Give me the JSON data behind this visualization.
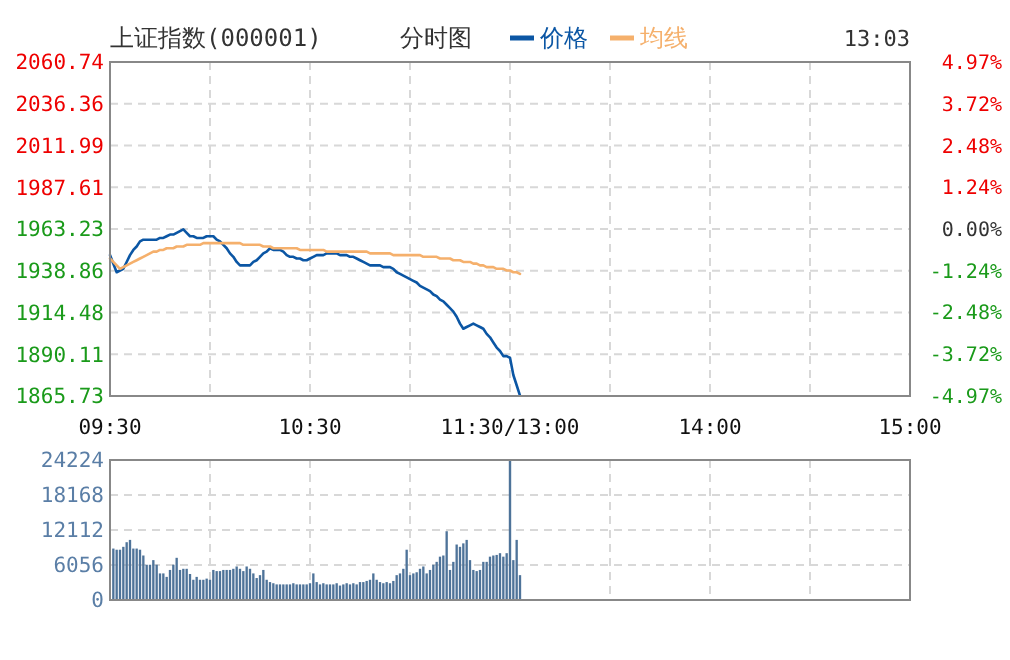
{
  "chart_data": [
    {
      "type": "line",
      "title": "上证指数(000001)",
      "subtitle": "分时图",
      "annotations": [
        "13:03"
      ],
      "legend": "top",
      "grid": true,
      "categories": [
        "09:30",
        null,
        null,
        null,
        null,
        null,
        null,
        null,
        null,
        null,
        null,
        null,
        null,
        null,
        null,
        null,
        null,
        null,
        null,
        null,
        null,
        null,
        null,
        null,
        null,
        null,
        null,
        null,
        null,
        null,
        null,
        null,
        null,
        null,
        null,
        null,
        null,
        null,
        null,
        null,
        null,
        null,
        null,
        null,
        null,
        null,
        null,
        null,
        null,
        null,
        null,
        null,
        null,
        null,
        null,
        null,
        null,
        null,
        null,
        null,
        "10:30",
        null,
        null,
        null,
        null,
        null,
        null,
        null,
        null,
        null,
        null,
        null,
        null,
        null,
        null,
        null,
        null,
        null,
        null,
        null,
        null,
        null,
        null,
        null,
        null,
        null,
        null,
        null,
        null,
        null,
        null,
        null,
        null,
        null,
        null,
        null,
        null,
        null,
        null,
        null,
        null,
        null,
        null,
        null,
        null,
        null,
        null,
        null,
        null,
        null,
        null,
        null,
        null,
        null,
        null,
        null,
        null,
        null,
        null,
        null,
        "11:30/13:00",
        null,
        null,
        null,
        null,
        null,
        null,
        null,
        null,
        null,
        null,
        null,
        null,
        null,
        null,
        null,
        null,
        null,
        null,
        null,
        null,
        null,
        null,
        null,
        null,
        null,
        null,
        null,
        null,
        null,
        null,
        null,
        null,
        null,
        null,
        null,
        null,
        null,
        null,
        null,
        null,
        null,
        null,
        null,
        null,
        null,
        null,
        null,
        null,
        null,
        null,
        null,
        null,
        null,
        null,
        null,
        null,
        null,
        null,
        null,
        "14:00",
        null,
        null,
        null,
        null,
        null,
        null,
        null,
        null,
        null,
        null,
        null,
        null,
        null,
        null,
        null,
        null,
        null,
        null,
        null,
        null,
        null,
        null,
        null,
        null,
        null,
        null,
        null,
        null,
        null,
        null,
        null,
        null,
        null,
        null,
        null,
        null,
        null,
        null,
        null,
        null,
        null,
        null,
        null,
        null,
        null,
        null,
        null,
        null,
        null,
        null,
        null,
        null,
        null,
        null,
        null,
        null,
        null,
        null,
        null,
        "15:00"
      ],
      "series": [
        {
          "name": "价格",
          "color": "#0b56a4",
          "values": [
            1948,
            1943,
            1938,
            1939,
            1940,
            1944,
            1948,
            1951,
            1953,
            1956,
            1957,
            1957,
            1957,
            1957,
            1957,
            1958,
            1958,
            1959,
            1960,
            1960,
            1961,
            1962,
            1963,
            1961,
            1959,
            1959,
            1958,
            1958,
            1958,
            1959,
            1959,
            1959,
            1957,
            1956,
            1954,
            1952,
            1949,
            1947,
            1944,
            1942,
            1942,
            1942,
            1942,
            1944,
            1945,
            1947,
            1949,
            1950,
            1952,
            1951,
            1951,
            1951,
            1950,
            1948,
            1947,
            1947,
            1946,
            1946,
            1945,
            1945,
            1946,
            1947,
            1948,
            1948,
            1948,
            1949,
            1949,
            1949,
            1949,
            1948,
            1948,
            1948,
            1947,
            1947,
            1946,
            1945,
            1944,
            1943,
            1942,
            1942,
            1942,
            1942,
            1941,
            1941,
            1941,
            1940,
            1938,
            1937,
            1936,
            1935,
            1934,
            1933,
            1932,
            1930,
            1929,
            1928,
            1927,
            1925,
            1924,
            1922,
            1921,
            1919,
            1917,
            1915,
            1912,
            1908,
            1905,
            1906,
            1907,
            1908,
            1907,
            1906,
            1905,
            1902,
            1900,
            1897,
            1894,
            1892,
            1889,
            1889,
            1888,
            1878,
            1872,
            1866,
            null,
            null,
            null,
            null,
            null,
            null,
            null,
            null,
            null,
            null,
            null,
            null,
            null,
            null,
            null,
            null,
            null,
            null,
            null,
            null,
            null,
            null,
            null,
            null,
            null,
            null,
            null,
            null,
            null,
            null,
            null,
            null,
            null,
            null,
            null,
            null,
            null,
            null,
            null,
            null,
            null,
            null,
            null,
            null,
            null,
            null,
            null,
            null,
            null,
            null,
            null,
            null,
            null,
            null,
            null,
            null,
            null,
            null,
            null,
            null,
            null,
            null,
            null,
            null,
            null,
            null,
            null,
            null,
            null,
            null,
            null,
            null,
            null,
            null,
            null,
            null,
            null,
            null,
            null,
            null,
            null,
            null,
            null,
            null,
            null,
            null,
            null,
            null,
            null,
            null,
            null,
            null,
            null,
            null,
            null,
            null,
            null,
            null,
            null,
            null,
            null,
            null,
            null,
            null,
            null,
            null,
            null,
            null,
            null,
            null,
            null,
            null,
            null,
            null,
            null,
            null,
            null
          ]
        },
        {
          "name": "均线",
          "color": "#f5b06c",
          "values": [
            1946,
            1944,
            1942,
            1940,
            1941,
            1942,
            1943,
            1944,
            1945,
            1946,
            1947,
            1948,
            1949,
            1950,
            1950,
            1951,
            1951,
            1952,
            1952,
            1952,
            1953,
            1953,
            1953,
            1954,
            1954,
            1954,
            1954,
            1954,
            1955,
            1955,
            1955,
            1955,
            1955,
            1955,
            1955,
            1955,
            1955,
            1955,
            1955,
            1955,
            1954,
            1954,
            1954,
            1954,
            1954,
            1954,
            1953,
            1953,
            1953,
            1952,
            1952,
            1952,
            1952,
            1952,
            1952,
            1952,
            1952,
            1951,
            1951,
            1951,
            1951,
            1951,
            1951,
            1951,
            1951,
            1950,
            1950,
            1950,
            1950,
            1950,
            1950,
            1950,
            1950,
            1950,
            1950,
            1950,
            1950,
            1950,
            1949,
            1949,
            1949,
            1949,
            1949,
            1949,
            1949,
            1948,
            1948,
            1948,
            1948,
            1948,
            1948,
            1948,
            1948,
            1948,
            1947,
            1947,
            1947,
            1947,
            1947,
            1946,
            1946,
            1946,
            1946,
            1945,
            1945,
            1945,
            1944,
            1944,
            1944,
            1943,
            1943,
            1942,
            1942,
            1941,
            1941,
            1941,
            1940,
            1940,
            1940,
            1939,
            1939,
            1938,
            1938,
            1937,
            null,
            null,
            null,
            null,
            null,
            null,
            null,
            null,
            null,
            null,
            null,
            null,
            null,
            null,
            null,
            null,
            null,
            null,
            null,
            null,
            null,
            null,
            null,
            null,
            null,
            null,
            null,
            null,
            null,
            null,
            null,
            null,
            null,
            null,
            null,
            null,
            null,
            null,
            null,
            null,
            null,
            null,
            null,
            null,
            null,
            null,
            null,
            null,
            null,
            null,
            null,
            null,
            null,
            null,
            null,
            null,
            null,
            null,
            null,
            null,
            null,
            null,
            null,
            null,
            null,
            null,
            null,
            null,
            null,
            null,
            null,
            null,
            null,
            null,
            null,
            null,
            null,
            null,
            null,
            null,
            null,
            null,
            null,
            null,
            null,
            null,
            null,
            null,
            null,
            null,
            null,
            null,
            null,
            null,
            null,
            null,
            null,
            null,
            null,
            null,
            null,
            null,
            null,
            null,
            null,
            null,
            null,
            null,
            null,
            null,
            null,
            null,
            null,
            null,
            null,
            null,
            null
          ]
        }
      ],
      "ylim": [
        1865.73,
        2060.74
      ],
      "yticks": [
        1865.73,
        1890.11,
        1914.48,
        1938.86,
        1963.23,
        1987.61,
        2011.99,
        2036.36,
        2060.74
      ],
      "y2lim": [
        -4.97,
        4.97
      ],
      "y2ticks": [
        {
          "value": -4.97,
          "label": "-4.97%"
        },
        {
          "value": -3.72,
          "label": "-3.72%"
        },
        {
          "value": -2.48,
          "label": "-2.48%"
        },
        {
          "value": -1.24,
          "label": "-1.24%"
        },
        {
          "value": 0,
          "label": "0.00%"
        },
        {
          "value": 1.24,
          "label": "1.24%"
        },
        {
          "value": 2.48,
          "label": "2.48%"
        },
        {
          "value": 3.72,
          "label": "3.72%"
        },
        {
          "value": 4.97,
          "label": "4.97%"
        }
      ]
    },
    {
      "type": "bar",
      "color": "#4e7399",
      "grid": true,
      "tick_labels": "y",
      "categories": [
        "09:30",
        null,
        null,
        null,
        null,
        null,
        null,
        null,
        null,
        null,
        null,
        null,
        null,
        null,
        null,
        null,
        null,
        null,
        null,
        null,
        null,
        null,
        null,
        null,
        null,
        null,
        null,
        null,
        null,
        null,
        null,
        null,
        null,
        null,
        null,
        null,
        null,
        null,
        null,
        null,
        null,
        null,
        null,
        null,
        null,
        null,
        null,
        null,
        null,
        null,
        null,
        null,
        null,
        null,
        null,
        null,
        null,
        null,
        null,
        null,
        "10:30",
        null,
        null,
        null,
        null,
        null,
        null,
        null,
        null,
        null,
        null,
        null,
        null,
        null,
        null,
        null,
        null,
        null,
        null,
        null,
        null,
        null,
        null,
        null,
        null,
        null,
        null,
        null,
        null,
        null,
        null,
        null,
        null,
        null,
        null,
        null,
        null,
        null,
        null,
        null,
        null,
        null,
        null,
        null,
        null,
        null,
        null,
        null,
        null,
        null,
        null,
        null,
        null,
        null,
        null,
        null,
        null,
        null,
        null,
        null,
        "11:30/13:00",
        null,
        null,
        null,
        null,
        null,
        null,
        null,
        null,
        null,
        null,
        null,
        null,
        null,
        null,
        null,
        null,
        null,
        null,
        null,
        null,
        null,
        null,
        null,
        null,
        null,
        null,
        null,
        null,
        null,
        null,
        null,
        null,
        null,
        null,
        null,
        null,
        null,
        null,
        null,
        null,
        null,
        null,
        null,
        null,
        null,
        null,
        null,
        null,
        null,
        null,
        null,
        null,
        null,
        null,
        null,
        null,
        null,
        null,
        null,
        "14:00",
        null,
        null,
        null,
        null,
        null,
        null,
        null,
        null,
        null,
        null,
        null,
        null,
        null,
        null,
        null,
        null,
        null,
        null,
        null,
        null,
        null,
        null,
        null,
        null,
        null,
        null,
        null,
        null,
        null,
        null,
        null,
        null,
        null,
        null,
        null,
        null,
        null,
        null,
        null,
        null,
        null,
        null,
        null,
        null,
        null,
        null,
        null,
        null,
        null,
        null,
        null,
        null,
        null,
        null,
        null,
        null,
        null,
        null,
        null,
        "15:00"
      ],
      "values": [
        null,
        8900,
        8700,
        8700,
        9200,
        10000,
        10400,
        8900,
        8900,
        8700,
        7700,
        6100,
        6100,
        6900,
        6100,
        4600,
        4600,
        4000,
        5200,
        6100,
        7300,
        5200,
        5400,
        5400,
        4500,
        3500,
        4000,
        3500,
        3500,
        3700,
        3500,
        5200,
        5000,
        5000,
        5200,
        5200,
        5200,
        5400,
        5800,
        5400,
        5000,
        5800,
        5400,
        4600,
        3800,
        4300,
        5200,
        3500,
        3100,
        2900,
        2700,
        2700,
        2700,
        2700,
        2700,
        2900,
        2700,
        2700,
        2700,
        2700,
        2900,
        4600,
        3100,
        2700,
        2900,
        2700,
        2700,
        2700,
        2900,
        2500,
        2700,
        2900,
        2700,
        2900,
        2700,
        3100,
        3100,
        3300,
        3500,
        4600,
        3500,
        3100,
        2900,
        3100,
        2900,
        3300,
        4300,
        4600,
        5400,
        8700,
        4300,
        4600,
        4800,
        5400,
        5800,
        4600,
        5200,
        6100,
        6600,
        7500,
        7700,
        11900,
        5200,
        6600,
        9600,
        9200,
        9800,
        10400,
        6900,
        5200,
        5000,
        5200,
        6600,
        6600,
        7500,
        7700,
        7800,
        8100,
        7500,
        8100,
        null,
        6900,
        10400,
        4300,
        null,
        null,
        null,
        null,
        null,
        null,
        null,
        null,
        null,
        null,
        null,
        null,
        null,
        null,
        null,
        null,
        null,
        null,
        null,
        null,
        null,
        null,
        null,
        null,
        null,
        null,
        null,
        null,
        null,
        null,
        null,
        null,
        null,
        null,
        null,
        null,
        null,
        null,
        null,
        null,
        null,
        null,
        null,
        null,
        null,
        null,
        null,
        null,
        null,
        null,
        null,
        null,
        null,
        null,
        null,
        null,
        null,
        null,
        null,
        null,
        null,
        null,
        null,
        null,
        null,
        null,
        null,
        null,
        null,
        null,
        null,
        null,
        null,
        null,
        null,
        null,
        null,
        null,
        null,
        null,
        null,
        null,
        null,
        null,
        null,
        null,
        null,
        null,
        null,
        null,
        null,
        null,
        null,
        null,
        null,
        null,
        null,
        null,
        null,
        null,
        null,
        null,
        null,
        null,
        null,
        null,
        null,
        null,
        null,
        null,
        null,
        null,
        null,
        null,
        null,
        null,
        null
      ],
      "ylim": [
        0,
        24224
      ],
      "yticks": [
        0,
        6056,
        12112,
        18168,
        24224
      ],
      "ref_lines": [
        {
          "axis": "x",
          "value": "11:30/13:00",
          "color": "#4e7399"
        }
      ]
    }
  ]
}
